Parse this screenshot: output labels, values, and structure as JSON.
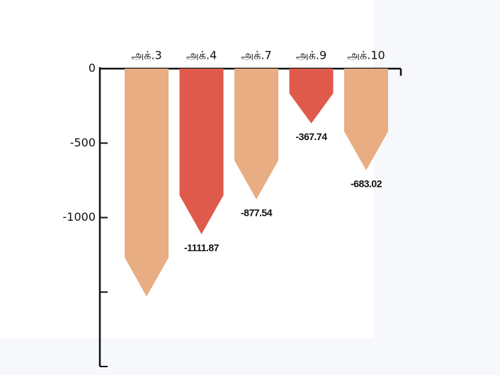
{
  "chart_data": {
    "type": "bar",
    "categories": [
      "அக்.3",
      "அக்.4",
      "அக்.7",
      "அக்.9",
      "அக்.10"
    ],
    "values": [
      -1530,
      -1111.87,
      -877.54,
      -367.74,
      -683.02
    ],
    "value_labels": [
      null,
      "-1111.87",
      "-877.54",
      "-367.74",
      "-683.02"
    ],
    "colors": [
      "#e8ad82",
      "#df5a4a",
      "#e8ad82",
      "#df5a4a",
      "#e8ad82"
    ],
    "ylim": [
      -2000,
      0
    ],
    "yticks": [
      0,
      -500,
      -1000
    ],
    "yticks_unlabeled": [
      -1500,
      -2000
    ]
  }
}
